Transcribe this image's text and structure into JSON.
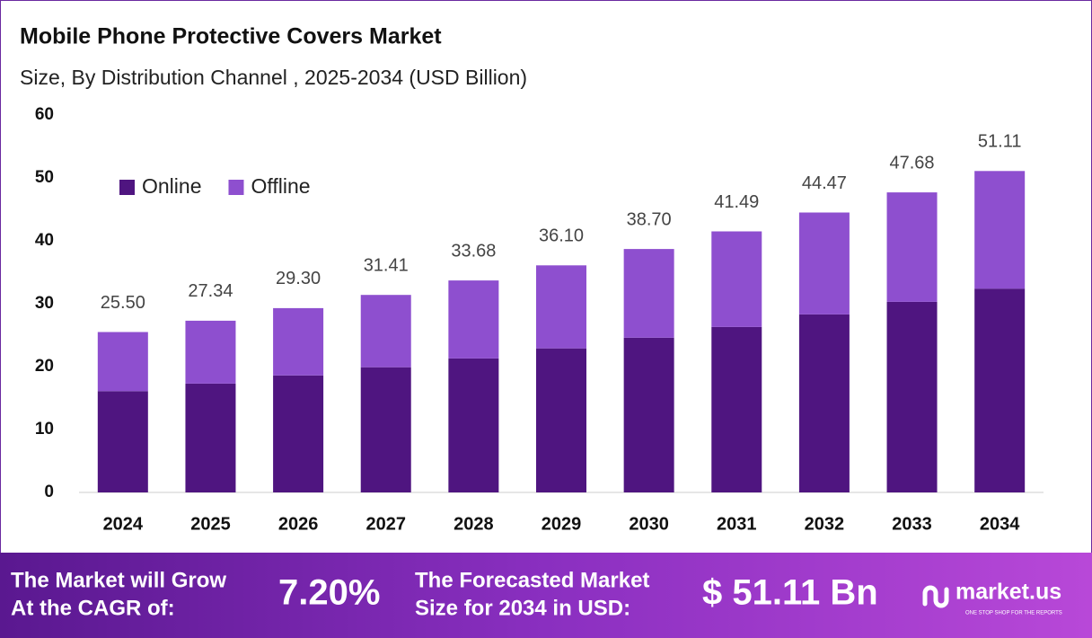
{
  "chart_data": {
    "type": "stacked_bar",
    "title": "Mobile Phone Protective Covers Market",
    "subtitle": "Size, By Distribution Channel , 2025-2034 (USD Billion)",
    "categories": [
      "2024",
      "2025",
      "2026",
      "2027",
      "2028",
      "2029",
      "2030",
      "2031",
      "2032",
      "2033",
      "2034"
    ],
    "series": [
      {
        "name": "Online",
        "color": "#4f1580",
        "values": [
          16.1,
          17.3,
          18.6,
          19.9,
          21.3,
          22.9,
          24.6,
          26.3,
          28.3,
          30.3,
          32.4
        ]
      },
      {
        "name": "Offline",
        "color": "#8e4fcf",
        "values": [
          9.4,
          10.0,
          10.7,
          11.5,
          12.4,
          13.2,
          14.1,
          15.2,
          16.2,
          17.4,
          18.7
        ]
      }
    ],
    "totals": [
      25.5,
      27.34,
      29.3,
      31.41,
      33.68,
      36.1,
      38.7,
      41.49,
      44.47,
      47.68,
      51.11
    ],
    "total_labels": [
      "25.50",
      "27.34",
      "29.30",
      "31.41",
      "33.68",
      "36.10",
      "38.70",
      "41.49",
      "44.47",
      "47.68",
      "51.11"
    ],
    "ylim": [
      0,
      60
    ],
    "yticks": [
      0,
      10,
      20,
      30,
      40,
      50,
      60
    ],
    "grid": false,
    "legend": "top-left"
  },
  "footer": {
    "cagr_text": [
      "The Market will Grow",
      "At the CAGR of:"
    ],
    "cagr": "7.20%",
    "forecast_text": [
      "The Forecasted Market",
      "Size for 2034 in USD:"
    ],
    "forecast": "$ 51.11 Bn",
    "brand": "market.us",
    "tagline": "ONE STOP SHOP FOR THE REPORTS"
  }
}
